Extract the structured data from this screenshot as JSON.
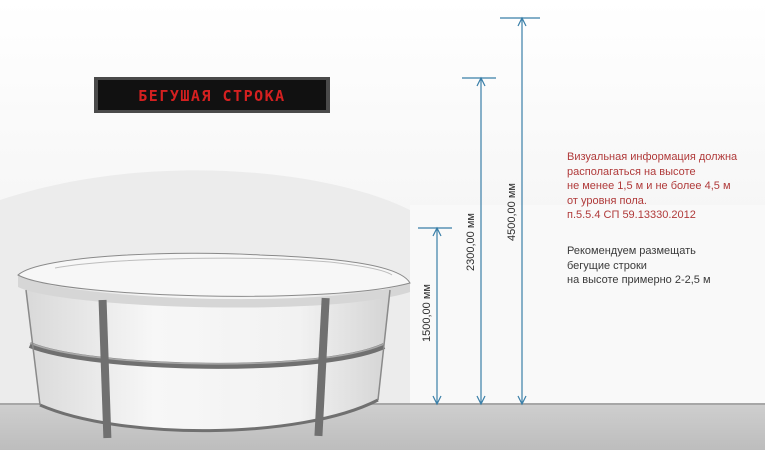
{
  "ticker": {
    "text": "БЕГУШАЯ СТРОКА",
    "text_color": "#d42020",
    "panel_color": "#111111"
  },
  "dimensions": [
    {
      "label": "1500,00 мм"
    },
    {
      "label": "2300,00 мм"
    },
    {
      "label": "4500,00 мм"
    }
  ],
  "note_requirement": {
    "lines": [
      "Визуальная информация должна",
      "располагаться на высоте",
      "не менее 1,5 м и не более 4,5 м",
      "от уровня пола.",
      "п.5.5.4 СП 59.13330.2012"
    ],
    "color": "#b03a3a"
  },
  "note_recommendation": {
    "lines": [
      "Рекомендуем размещать",
      "бегущие строки",
      "на высоте примерно 2-2,5 м"
    ]
  },
  "colors": {
    "dimension_line": "#3a7fa8",
    "wall_shadow": "#e9e9e9",
    "floor": "#c8c8c8",
    "counter_body": "#f4f4f4",
    "counter_frame": "#707070"
  }
}
